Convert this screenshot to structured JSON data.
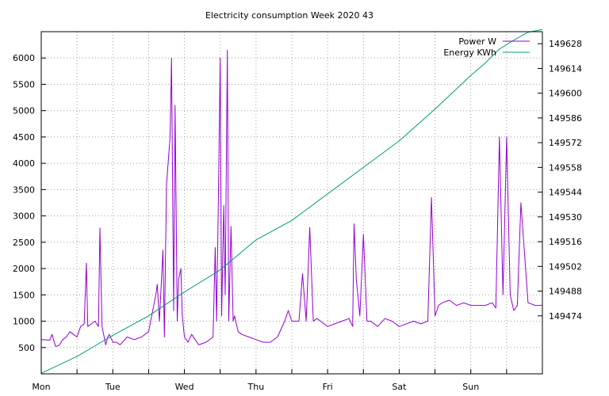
{
  "chart_data": {
    "type": "line",
    "title": "Electricity consumption Week 2020 43",
    "x_ticks": [
      "Mon",
      "Tue",
      "Wed",
      "Thu",
      "Fri",
      "Sat",
      "Sun"
    ],
    "x_range_days": [
      0,
      7
    ],
    "y_left": {
      "ticks": [
        500,
        1000,
        1500,
        2000,
        2500,
        3000,
        3500,
        4000,
        4500,
        5000,
        5500,
        6000
      ],
      "range": [
        0,
        6500
      ]
    },
    "y_right": {
      "ticks": [
        149474,
        149488,
        149502,
        149516,
        149530,
        149544,
        149558,
        149572,
        149586,
        149600,
        149614,
        149628
      ],
      "range": [
        149441.2,
        149634.8
      ]
    },
    "grid": true,
    "legend_position": "top-right",
    "series": [
      {
        "name": "Power W",
        "axis": "left",
        "color": "#9400d3",
        "x": [
          0.0,
          0.12,
          0.15,
          0.2,
          0.25,
          0.3,
          0.35,
          0.4,
          0.45,
          0.5,
          0.55,
          0.6,
          0.63,
          0.65,
          0.7,
          0.75,
          0.8,
          0.82,
          0.85,
          0.9,
          0.93,
          0.95,
          1.0,
          1.05,
          1.1,
          1.2,
          1.3,
          1.4,
          1.5,
          1.6,
          1.62,
          1.65,
          1.7,
          1.72,
          1.75,
          1.8,
          1.82,
          1.85,
          1.87,
          1.9,
          1.92,
          1.95,
          1.97,
          2.0,
          2.05,
          2.1,
          2.2,
          2.3,
          2.4,
          2.43,
          2.45,
          2.48,
          2.5,
          2.52,
          2.55,
          2.57,
          2.6,
          2.62,
          2.65,
          2.68,
          2.7,
          2.75,
          2.8,
          2.9,
          3.0,
          3.1,
          3.2,
          3.3,
          3.4,
          3.45,
          3.5,
          3.6,
          3.65,
          3.7,
          3.75,
          3.8,
          3.85,
          3.9,
          4.0,
          4.1,
          4.2,
          4.3,
          4.35,
          4.37,
          4.4,
          4.45,
          4.5,
          4.55,
          4.6,
          4.7,
          4.8,
          4.9,
          5.0,
          5.2,
          5.3,
          5.4,
          5.45,
          5.5,
          5.55,
          5.6,
          5.7,
          5.8,
          5.9,
          6.0,
          6.1,
          6.2,
          6.3,
          6.35,
          6.4,
          6.45,
          6.5,
          6.55,
          6.6,
          6.65,
          6.7,
          6.8,
          6.9,
          7.0
        ],
        "y": [
          650,
          640,
          750,
          520,
          540,
          650,
          700,
          800,
          750,
          700,
          900,
          950,
          2100,
          900,
          950,
          1000,
          900,
          2770,
          900,
          550,
          700,
          750,
          600,
          600,
          550,
          700,
          650,
          700,
          800,
          1500,
          1700,
          1000,
          2350,
          700,
          3600,
          4500,
          6000,
          1200,
          5100,
          1000,
          1800,
          2000,
          1100,
          700,
          600,
          750,
          550,
          600,
          700,
          2400,
          1000,
          3900,
          6000,
          1100,
          3200,
          1500,
          6150,
          1000,
          2800,
          1000,
          1100,
          800,
          750,
          700,
          650,
          600,
          600,
          700,
          1000,
          1200,
          1000,
          1000,
          1900,
          1000,
          2780,
          1000,
          1050,
          1000,
          900,
          950,
          1000,
          1050,
          900,
          2850,
          1800,
          1100,
          2650,
          1000,
          1000,
          900,
          1050,
          1000,
          900,
          1000,
          950,
          1000,
          3350,
          1100,
          1300,
          1350,
          1400,
          1300,
          1350,
          1300,
          1300,
          1300,
          1350,
          1250,
          4500,
          1500,
          4500,
          1500,
          1200,
          1300,
          3250,
          1350,
          1300,
          1300
        ]
      },
      {
        "name": "Energy KWh",
        "axis": "right",
        "color": "#009e73",
        "x": [
          0,
          0.5,
          1,
          1.5,
          2,
          2.5,
          3,
          3.5,
          4,
          4.5,
          5,
          5.5,
          6,
          6.2,
          6.4,
          6.6,
          6.8,
          7.0
        ],
        "y": [
          149441.5,
          149451,
          149463,
          149474,
          149487.5,
          149500,
          149517,
          149528,
          149543,
          149558,
          149573,
          149591,
          149610,
          149617,
          149625,
          149630,
          149634.5,
          149636
        ]
      }
    ]
  }
}
